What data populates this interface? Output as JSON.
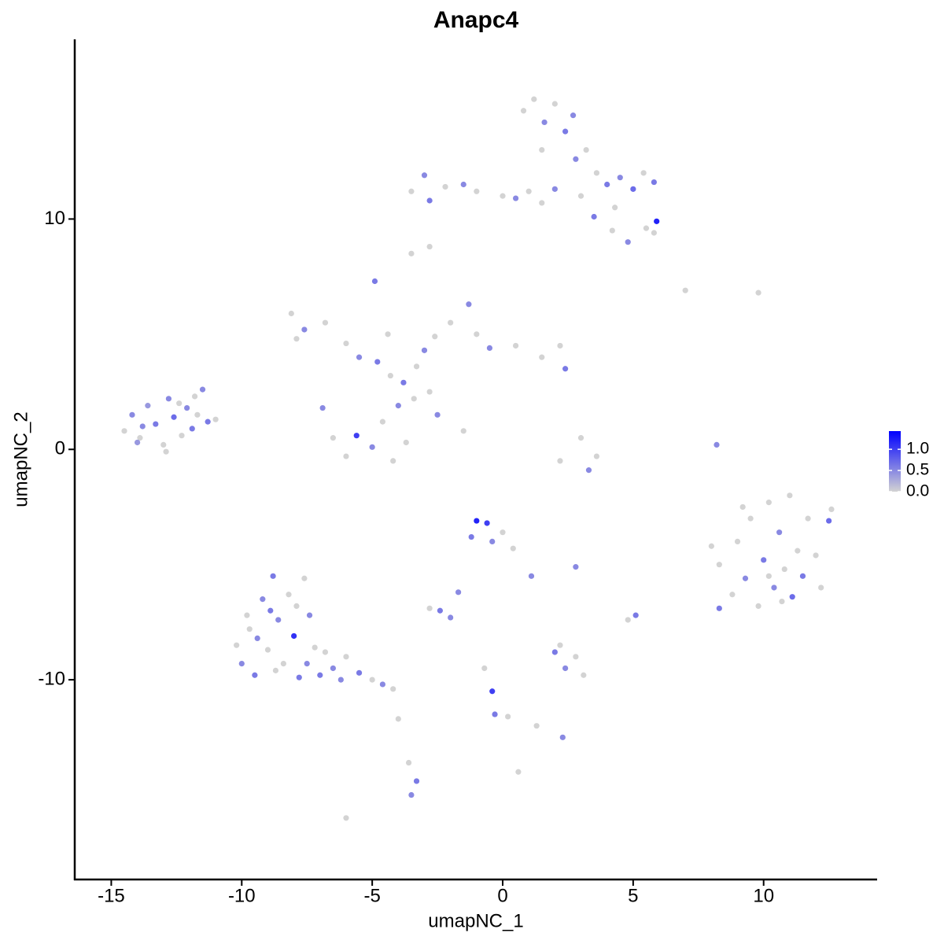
{
  "chart_data": {
    "type": "scatter",
    "title": "Anapc4",
    "x_label": "umapNC_1",
    "y_label": "umapNC_2",
    "xlim": [
      -16.4,
      14.35
    ],
    "ylim": [
      -18.67,
      17.8
    ],
    "xticks": [
      -15,
      -10,
      -5,
      0,
      5,
      10
    ],
    "yticks": [
      -10,
      0,
      10
    ],
    "color_low": "#d3d3d3",
    "color_high": "#0000ff",
    "color_lim": [
      0,
      1.43
    ],
    "color_ticks": [
      {
        "value": 0,
        "label": "0.0"
      },
      {
        "value": 0.5,
        "label": "0.5"
      },
      {
        "value": 1.0,
        "label": "1.0"
      }
    ],
    "x": [
      -14.5,
      -14.2,
      -13.9,
      -13.6,
      -13.3,
      -13.0,
      -12.8,
      -12.6,
      -12.3,
      -12.1,
      -11.9,
      -11.7,
      -11.5,
      -11.3,
      -11.0,
      -13.8,
      -12.9,
      -12.4,
      -14.0,
      -11.8,
      -8.1,
      -7.6,
      -7.9,
      -6.8,
      -6.0,
      -5.5,
      -4.8,
      -4.3,
      -3.8,
      -3.3,
      -3.0,
      -2.6,
      -2.0,
      -1.3,
      -1.0,
      -0.5,
      0.5,
      1.5,
      2.2,
      2.4,
      -6.9,
      -6.5,
      -6.0,
      -5.6,
      -5.0,
      -4.6,
      -4.2,
      -4.0,
      -3.7,
      -3.4,
      -2.5,
      -1.5,
      -4.9,
      -4.4,
      -2.8,
      -3.5,
      -3.0,
      -2.8,
      -2.2,
      -1.5,
      -1.0,
      0.0,
      0.5,
      1.0,
      1.5,
      2.0,
      0.8,
      1.2,
      1.6,
      2.0,
      2.4,
      2.7,
      1.5,
      2.8,
      3.2,
      3.6,
      4.0,
      4.5,
      5.0,
      5.4,
      5.8,
      3.5,
      4.2,
      4.8,
      5.5,
      5.9,
      5.8,
      4.3,
      -2.8,
      3.0,
      -10.2,
      -10.0,
      -9.7,
      -9.5,
      -9.2,
      -9.0,
      -8.8,
      -8.6,
      -8.4,
      -8.2,
      -8.0,
      -7.8,
      -7.6,
      -7.4,
      -7.2,
      -7.5,
      -8.9,
      -9.4,
      -6.8,
      -6.5,
      -6.0,
      -5.5,
      -5.0,
      -4.6,
      -4.2,
      -8.7,
      -9.8,
      -7.9,
      -6.2,
      -7.0,
      8.0,
      8.3,
      8.3,
      8.8,
      9.0,
      9.3,
      9.5,
      9.8,
      10.0,
      10.2,
      10.4,
      10.6,
      10.8,
      11.0,
      11.1,
      11.3,
      11.5,
      11.7,
      12.0,
      12.2,
      12.5,
      12.6,
      10.2,
      9.2,
      10.7,
      -1.0,
      -0.6,
      -1.2,
      -0.4,
      0.0,
      0.4,
      1.1,
      -1.7,
      -2.0,
      -2.8,
      -2.4,
      2.0,
      2.4,
      2.8,
      3.1,
      2.2,
      5.1,
      4.8,
      3.0,
      2.2,
      3.3,
      3.6,
      8.2,
      7.0,
      9.8,
      -3.5,
      -3.3,
      -3.6,
      -0.4,
      -0.3,
      0.2,
      1.3,
      2.3,
      0.6,
      -6.0,
      -4.0,
      -0.7,
      2.8,
      -3.5
    ],
    "y": [
      0.8,
      1.5,
      0.5,
      1.9,
      1.1,
      0.2,
      2.2,
      1.4,
      0.6,
      1.8,
      0.9,
      1.5,
      2.6,
      1.2,
      1.3,
      1.0,
      -0.1,
      2.0,
      0.3,
      2.3,
      5.9,
      5.2,
      4.8,
      5.5,
      4.6,
      4.0,
      3.8,
      3.2,
      2.9,
      3.6,
      4.3,
      4.9,
      5.5,
      6.3,
      5.0,
      4.4,
      4.5,
      4.0,
      4.5,
      3.5,
      1.8,
      0.5,
      -0.3,
      0.6,
      0.1,
      1.2,
      -0.5,
      1.9,
      0.3,
      2.2,
      1.5,
      0.8,
      7.3,
      5.0,
      2.5,
      11.2,
      11.9,
      10.8,
      11.4,
      11.5,
      11.2,
      11.0,
      10.9,
      11.2,
      10.7,
      11.3,
      14.7,
      15.2,
      14.2,
      15.0,
      13.8,
      14.5,
      13.0,
      12.6,
      13.0,
      12.0,
      11.5,
      11.8,
      11.3,
      12.0,
      11.6,
      10.1,
      9.5,
      9.0,
      9.6,
      9.9,
      9.4,
      10.5,
      8.8,
      11.0,
      -8.5,
      -9.3,
      -7.8,
      -9.8,
      -6.5,
      -8.7,
      -5.5,
      -7.4,
      -9.3,
      -6.3,
      -8.1,
      -9.9,
      -5.6,
      -7.2,
      -8.6,
      -9.3,
      -7.0,
      -8.2,
      -8.8,
      -9.5,
      -9.0,
      -9.7,
      -10.0,
      -10.2,
      -10.4,
      -9.6,
      -7.2,
      -6.8,
      -10.0,
      -9.8,
      -4.2,
      -5.0,
      -6.9,
      -6.3,
      -4.0,
      -5.6,
      -3.0,
      -6.8,
      -4.8,
      -2.3,
      -6.0,
      -3.6,
      -5.2,
      -2.0,
      -6.4,
      -4.4,
      -5.5,
      -3.0,
      -4.6,
      -6.0,
      -3.1,
      -2.6,
      -5.5,
      -2.5,
      -6.6,
      -3.1,
      -3.2,
      -3.8,
      -4.0,
      -3.6,
      -4.3,
      -5.5,
      -6.2,
      -7.3,
      -6.9,
      -7.0,
      -8.8,
      -9.5,
      -9.0,
      -9.8,
      -8.5,
      -7.2,
      -7.4,
      0.5,
      -0.5,
      -0.9,
      -0.3,
      0.2,
      6.9,
      6.8,
      -15.0,
      -14.4,
      -13.6,
      -10.5,
      -11.5,
      -11.6,
      -12.0,
      -12.5,
      -14.0,
      -16.0,
      -11.7,
      -9.5,
      -5.1,
      8.5
    ],
    "values": [
      0,
      0.5,
      0,
      0.4,
      0.6,
      0,
      0.5,
      0.7,
      0,
      0.5,
      0.6,
      0,
      0.5,
      0.6,
      0,
      0.5,
      0,
      0,
      0.4,
      0,
      0,
      0.5,
      0,
      0,
      0,
      0.5,
      0.6,
      0,
      0.6,
      0,
      0.5,
      0,
      0,
      0.5,
      0,
      0.5,
      0,
      0,
      0,
      0.6,
      0.5,
      0,
      0,
      1.0,
      0.5,
      0,
      0,
      0.5,
      0,
      0,
      0.5,
      0,
      0.6,
      0,
      0,
      0,
      0.5,
      0.6,
      0,
      0.5,
      0,
      0,
      0.5,
      0,
      0,
      0.5,
      0,
      0,
      0.5,
      0,
      0.6,
      0.5,
      0,
      0.5,
      0,
      0,
      0.6,
      0.5,
      0.7,
      0,
      0.6,
      0.6,
      0,
      0.5,
      0,
      1.2,
      0,
      0,
      0,
      0,
      0,
      0.5,
      0,
      0.6,
      0.5,
      0,
      0.6,
      0.5,
      0,
      0,
      1.1,
      0.6,
      0,
      0.5,
      0,
      0.5,
      0.6,
      0.5,
      0,
      0.5,
      0,
      0.6,
      0,
      0.5,
      0,
      0,
      0,
      0,
      0.5,
      0.6,
      0,
      0,
      0.6,
      0,
      0,
      0.5,
      0,
      0,
      0.6,
      0,
      0.5,
      0.5,
      0,
      0,
      0.7,
      0,
      0.6,
      0,
      0,
      0,
      0.7,
      0,
      0,
      0,
      0,
      1.2,
      1.0,
      0.6,
      0.5,
      0,
      0,
      0.5,
      0.5,
      0.5,
      0,
      0.6,
      0.6,
      0.5,
      0,
      0,
      0,
      0.6,
      0,
      0,
      0,
      0.5,
      0,
      0.5,
      0,
      0,
      0.5,
      0.6,
      0,
      1.0,
      0.6,
      0,
      0,
      0.5,
      0,
      0,
      0,
      0,
      0.5,
      0
    ]
  }
}
